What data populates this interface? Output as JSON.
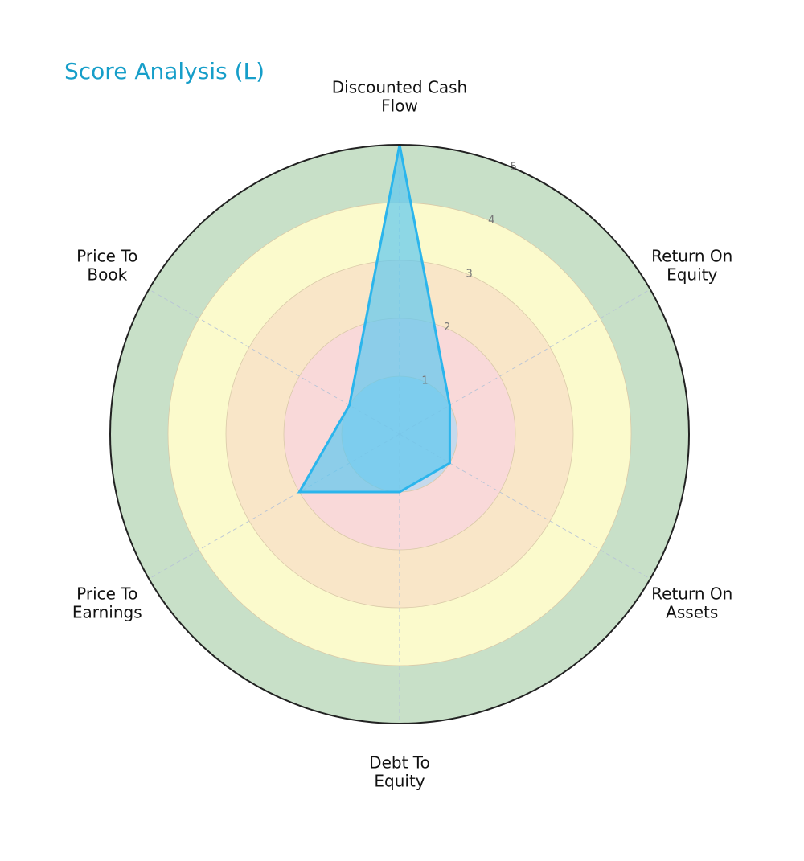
{
  "chart_data": {
    "type": "radar",
    "title": "Score Analysis (L)",
    "axes": [
      {
        "label_lines": [
          "Discounted Cash",
          "Flow"
        ],
        "value": 5
      },
      {
        "label_lines": [
          "Return On",
          "Equity"
        ],
        "value": 1
      },
      {
        "label_lines": [
          "Return On",
          "Assets"
        ],
        "value": 1
      },
      {
        "label_lines": [
          "Debt To",
          "Equity"
        ],
        "value": 1
      },
      {
        "label_lines": [
          "Price To",
          "Earnings"
        ],
        "value": 2
      },
      {
        "label_lines": [
          "Price To",
          "Book"
        ],
        "value": 1
      }
    ],
    "rlim": [
      0,
      5
    ],
    "r_ticks": [
      "1",
      "2",
      "3",
      "4",
      "5"
    ],
    "bands": [
      {
        "from": 0,
        "to": 1,
        "color": "#c6d9ec"
      },
      {
        "from": 1,
        "to": 2,
        "color": "#f9d9d9"
      },
      {
        "from": 2,
        "to": 3,
        "color": "#f9e6c8"
      },
      {
        "from": 3,
        "to": 4,
        "color": "#fbfacc"
      },
      {
        "from": 4,
        "to": 5,
        "color": "#c8e0c8"
      }
    ],
    "series_color": "#2bb5ec",
    "series_fill": "#5ec8f0",
    "outline_color": "#222222",
    "grid": true
  }
}
